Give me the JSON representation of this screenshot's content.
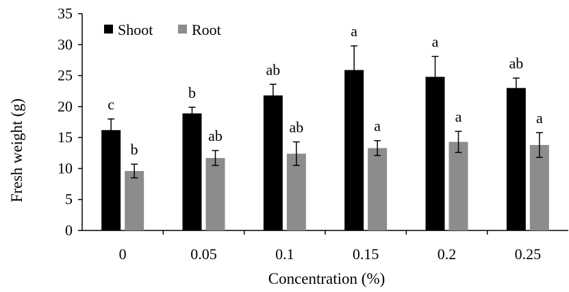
{
  "chart_data": {
    "type": "bar",
    "title": "",
    "xlabel": "Concentration (%)",
    "ylabel": "Fresh weight (g)",
    "categories": [
      "0",
      "0.05",
      "0.1",
      "0.15",
      "0.2",
      "0.25"
    ],
    "ylim": [
      0,
      35
    ],
    "yticks": [
      0,
      5,
      10,
      15,
      20,
      25,
      30,
      35
    ],
    "grid": false,
    "legend_position": "top-left",
    "series": [
      {
        "name": "Shoot",
        "color": "#000000",
        "values": [
          16.2,
          18.9,
          21.8,
          25.9,
          24.8,
          23.0
        ],
        "errors": [
          1.8,
          1.0,
          1.8,
          3.9,
          3.3,
          1.6
        ],
        "significance": [
          "c",
          "b",
          "ab",
          "a",
          "a",
          "ab"
        ]
      },
      {
        "name": "Root",
        "color": "#8c8c8c",
        "values": [
          9.6,
          11.7,
          12.4,
          13.3,
          14.3,
          13.8
        ],
        "errors": [
          1.1,
          1.2,
          1.9,
          1.2,
          1.7,
          2.0
        ],
        "significance": [
          "b",
          "ab",
          "ab",
          "a",
          "a",
          "a"
        ]
      }
    ]
  }
}
